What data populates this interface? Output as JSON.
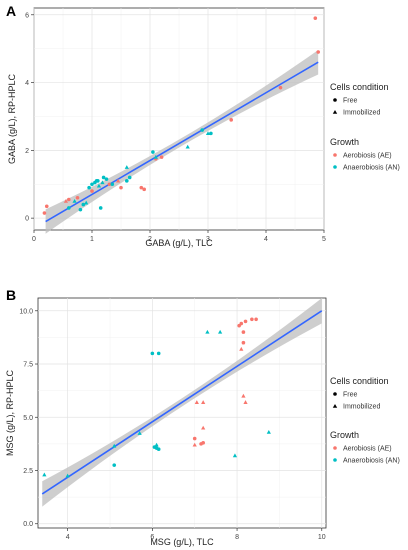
{
  "chart_data": [
    {
      "panel": "A",
      "type": "scatter",
      "xlabel": "GABA (g/L), TLC",
      "ylabel": "GABA (g/L), RP-HPLC",
      "xlim": [
        0,
        5
      ],
      "ylim": [
        -0.35,
        6.2
      ],
      "xticks": [
        0,
        1,
        2,
        3,
        4,
        5
      ],
      "yticks": [
        0,
        2,
        4,
        6
      ],
      "grid": true,
      "fit": {
        "x": [
          0.2,
          4.9
        ],
        "y": [
          -0.1,
          4.6
        ]
      },
      "series": [
        {
          "name": "Aerobiosis (AE)",
          "color": "#F8766D",
          "free": [
            [
              0.18,
              0.15
            ],
            [
              0.22,
              0.35
            ],
            [
              0.6,
              0.55
            ],
            [
              0.75,
              0.6
            ],
            [
              1.0,
              0.8
            ],
            [
              1.3,
              1.0
            ],
            [
              1.5,
              0.9
            ],
            [
              1.85,
              0.9
            ],
            [
              1.9,
              0.85
            ],
            [
              2.1,
              1.75
            ],
            [
              2.2,
              1.8
            ],
            [
              3.4,
              2.9
            ],
            [
              4.25,
              3.85
            ],
            [
              4.85,
              5.9
            ],
            [
              4.9,
              4.9
            ]
          ],
          "immobilized": [
            [
              0.55,
              0.5
            ],
            [
              1.45,
              1.1
            ]
          ]
        },
        {
          "name": "Anaerobiosis (AN)",
          "color": "#00BFC4",
          "free": [
            [
              0.6,
              0.3
            ],
            [
              0.8,
              0.25
            ],
            [
              0.85,
              0.4
            ],
            [
              0.95,
              0.9
            ],
            [
              1.0,
              1.0
            ],
            [
              1.05,
              1.05
            ],
            [
              1.08,
              1.1
            ],
            [
              1.1,
              1.1
            ],
            [
              1.15,
              0.3
            ],
            [
              1.2,
              1.2
            ],
            [
              1.25,
              1.15
            ],
            [
              1.35,
              1.0
            ],
            [
              1.6,
              1.1
            ],
            [
              1.65,
              1.2
            ],
            [
              2.05,
              1.95
            ],
            [
              2.9,
              2.6
            ],
            [
              3.05,
              2.5
            ]
          ],
          "immobilized": [
            [
              0.7,
              0.5
            ],
            [
              0.9,
              0.45
            ],
            [
              1.12,
              0.95
            ],
            [
              1.18,
              1.05
            ],
            [
              1.6,
              1.5
            ],
            [
              2.1,
              1.8
            ],
            [
              2.65,
              2.1
            ],
            [
              3.0,
              2.5
            ]
          ]
        }
      ]
    },
    {
      "panel": "B",
      "type": "scatter",
      "xlabel": "MSG (g/L), TLC",
      "ylabel": "MSG (g/L), RP-HPLC",
      "xlim": [
        3.3,
        10.1
      ],
      "ylim": [
        -0.2,
        10.6
      ],
      "xticks": [
        4,
        6,
        8,
        10
      ],
      "yticks": [
        0.0,
        2.5,
        5.0,
        7.5,
        10.0
      ],
      "ytick_labels": [
        "0.0",
        "2.5",
        "5.0",
        "7.5",
        "10.0"
      ],
      "grid": true,
      "fit": {
        "x": [
          3.4,
          10.0
        ],
        "y": [
          1.4,
          10.0
        ]
      },
      "series": [
        {
          "name": "Aerobiosis (AE)",
          "color": "#F8766D",
          "free": [
            [
              8.05,
              9.3
            ],
            [
              8.1,
              9.4
            ],
            [
              8.15,
              9.0
            ],
            [
              8.15,
              8.5
            ],
            [
              8.2,
              9.5
            ],
            [
              8.35,
              9.6
            ],
            [
              8.45,
              9.6
            ],
            [
              7.0,
              4.0
            ],
            [
              7.2,
              3.8
            ],
            [
              7.15,
              3.75
            ]
          ],
          "immobilized": [
            [
              8.1,
              8.2
            ],
            [
              8.15,
              6.0
            ],
            [
              8.2,
              5.7
            ],
            [
              7.05,
              5.7
            ],
            [
              7.2,
              5.7
            ],
            [
              7.0,
              3.7
            ],
            [
              7.2,
              4.5
            ]
          ]
        },
        {
          "name": "Anaerobiosis (AN)",
          "color": "#00BFC4",
          "free": [
            [
              6.0,
              8.0
            ],
            [
              6.15,
              8.0
            ],
            [
              6.05,
              3.6
            ],
            [
              6.1,
              3.55
            ],
            [
              6.15,
              3.5
            ],
            [
              5.1,
              2.75
            ]
          ],
          "immobilized": [
            [
              3.45,
              2.3
            ],
            [
              4.0,
              2.25
            ],
            [
              5.1,
              3.65
            ],
            [
              5.7,
              4.25
            ],
            [
              7.3,
              9.0
            ],
            [
              7.6,
              9.0
            ],
            [
              7.95,
              3.2
            ],
            [
              8.75,
              4.3
            ],
            [
              6.1,
              3.7
            ]
          ]
        }
      ]
    }
  ],
  "legend": {
    "cells_title": "Cells condition",
    "free_label": "Free",
    "immobilized_label": "Immobilized",
    "growth_title": "Growth",
    "ae_label": "Aerobiosis (AE)",
    "an_label": "Anaerobiosis (AN)"
  },
  "colors": {
    "ae": "#F8766D",
    "an": "#00BFC4",
    "fit": "#3366FF",
    "band": "#BEBEBE"
  }
}
